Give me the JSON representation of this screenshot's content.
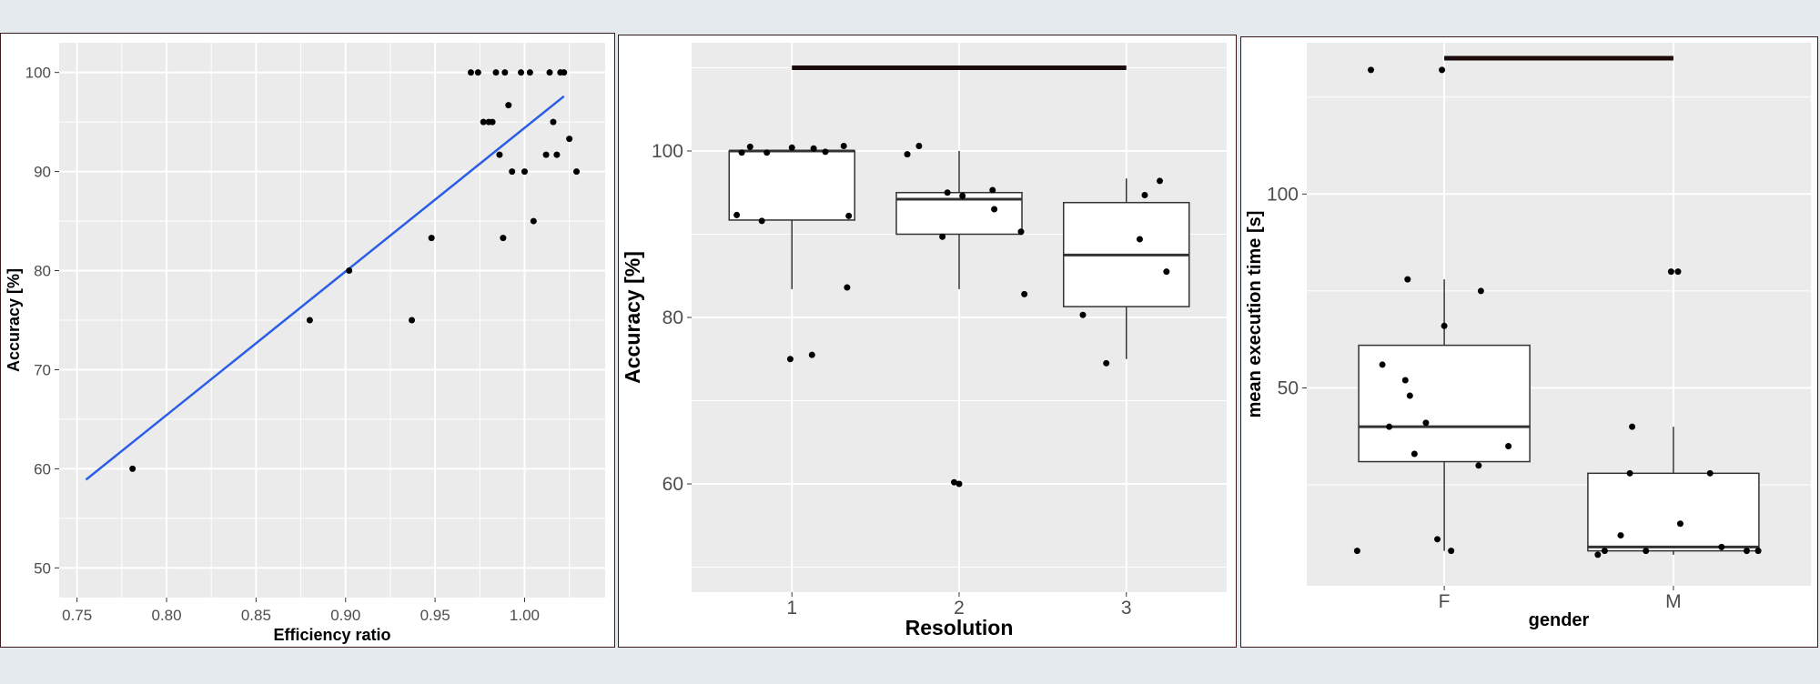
{
  "colors": {
    "panel_bg": "#ebebeb",
    "grid": "#ffffff",
    "point": "#000000",
    "fit_line": "#2a5ee8",
    "bracket": "#1a0a0a"
  },
  "chart_data": [
    {
      "type": "scatter",
      "title": "",
      "xlabel": "Efficiency ratio",
      "ylabel": "Accuracy [%]",
      "xlim": [
        0.74,
        1.045
      ],
      "ylim": [
        47,
        103
      ],
      "x_ticks": [
        "0.75",
        "0.80",
        "0.85",
        "0.90",
        "0.95",
        "1.00"
      ],
      "y_ticks": [
        "50",
        "60",
        "70",
        "80",
        "90",
        "100"
      ],
      "fit_line": {
        "x": [
          0.755,
          1.022
        ],
        "y": [
          58.9,
          97.6
        ]
      },
      "points": [
        [
          0.781,
          60
        ],
        [
          0.88,
          75
        ],
        [
          0.902,
          80
        ],
        [
          0.937,
          75
        ],
        [
          0.948,
          83.3
        ],
        [
          0.97,
          100
        ],
        [
          0.974,
          100
        ],
        [
          0.977,
          95
        ],
        [
          0.98,
          95
        ],
        [
          0.982,
          95
        ],
        [
          0.984,
          100
        ],
        [
          0.986,
          91.7
        ],
        [
          0.988,
          83.3
        ],
        [
          0.989,
          100
        ],
        [
          0.991,
          96.7
        ],
        [
          0.993,
          90
        ],
        [
          0.998,
          100
        ],
        [
          1.0,
          90
        ],
        [
          1.003,
          100
        ],
        [
          1.005,
          85
        ],
        [
          1.012,
          91.7
        ],
        [
          1.014,
          100
        ],
        [
          1.016,
          95
        ],
        [
          1.018,
          91.7
        ],
        [
          1.02,
          100
        ],
        [
          1.022,
          100
        ],
        [
          1.025,
          93.3
        ],
        [
          1.029,
          90
        ]
      ]
    },
    {
      "type": "box",
      "title": "",
      "xlabel": "Resolution",
      "ylabel": "Accuracy [%]",
      "categories": [
        "1",
        "2",
        "3"
      ],
      "ylim": [
        47,
        113
      ],
      "y_ticks": [
        "60",
        "80",
        "100"
      ],
      "boxes": [
        {
          "category": "1",
          "low": 83.4,
          "q1": 91.7,
          "median": 100,
          "q3": 100,
          "high": 100
        },
        {
          "category": "2",
          "low": 83.4,
          "q1": 90,
          "median": 94.2,
          "q3": 95,
          "high": 100
        },
        {
          "category": "3",
          "low": 75,
          "q1": 81.3,
          "median": 87.5,
          "q3": 93.8,
          "high": 96.7
        }
      ],
      "bracket": {
        "from": "1",
        "to": "3",
        "y": 110
      },
      "points": [
        [
          0.67,
          92.3
        ],
        [
          0.7,
          99.8
        ],
        [
          0.75,
          100.5
        ],
        [
          0.82,
          91.6
        ],
        [
          0.85,
          99.8
        ],
        [
          1.0,
          100.4
        ],
        [
          0.99,
          75
        ],
        [
          1.12,
          75.5
        ],
        [
          1.13,
          100.3
        ],
        [
          1.2,
          99.9
        ],
        [
          1.31,
          100.6
        ],
        [
          1.33,
          83.6
        ],
        [
          1.34,
          92.2
        ],
        [
          1.69,
          99.6
        ],
        [
          1.76,
          100.6
        ],
        [
          1.9,
          89.7
        ],
        [
          1.93,
          95
        ],
        [
          1.97,
          60.2
        ],
        [
          2.0,
          60
        ],
        [
          2.02,
          94.6
        ],
        [
          2.2,
          95.3
        ],
        [
          2.21,
          93
        ],
        [
          2.37,
          90.3
        ],
        [
          2.39,
          82.8
        ],
        [
          2.74,
          80.3
        ],
        [
          2.88,
          74.5
        ],
        [
          3.08,
          89.4
        ],
        [
          3.11,
          94.7
        ],
        [
          3.2,
          96.4
        ],
        [
          3.24,
          85.5
        ]
      ]
    },
    {
      "type": "box",
      "title": "",
      "xlabel": "gender",
      "ylabel": "mean execution time [s]",
      "categories": [
        "F",
        "M"
      ],
      "ylim": [
        -1,
        139
      ],
      "y_ticks": [
        "50",
        "100"
      ],
      "boxes": [
        {
          "category": "F",
          "low": 8,
          "q1": 31,
          "median": 40,
          "q3": 61,
          "high": 78
        },
        {
          "category": "M",
          "low": 7,
          "q1": 8,
          "median": 9,
          "q3": 28,
          "high": 40
        }
      ],
      "bracket": {
        "from": "F",
        "to": "M",
        "y": 135
      },
      "points": [
        [
          0.62,
          8
        ],
        [
          0.68,
          132
        ],
        [
          0.73,
          56
        ],
        [
          0.76,
          40
        ],
        [
          0.83,
          52
        ],
        [
          0.84,
          78
        ],
        [
          0.85,
          48
        ],
        [
          0.87,
          33
        ],
        [
          0.92,
          41
        ],
        [
          0.97,
          11
        ],
        [
          0.99,
          132
        ],
        [
          1.0,
          66
        ],
        [
          1.03,
          8
        ],
        [
          1.15,
          30
        ],
        [
          1.16,
          75
        ],
        [
          1.28,
          35
        ],
        [
          1.67,
          7
        ],
        [
          1.7,
          8
        ],
        [
          1.77,
          12
        ],
        [
          1.81,
          28
        ],
        [
          1.82,
          40
        ],
        [
          1.88,
          8
        ],
        [
          1.99,
          80
        ],
        [
          2.02,
          80
        ],
        [
          2.03,
          15
        ],
        [
          2.16,
          28
        ],
        [
          2.21,
          9
        ],
        [
          2.32,
          8
        ],
        [
          2.37,
          8
        ]
      ]
    }
  ]
}
